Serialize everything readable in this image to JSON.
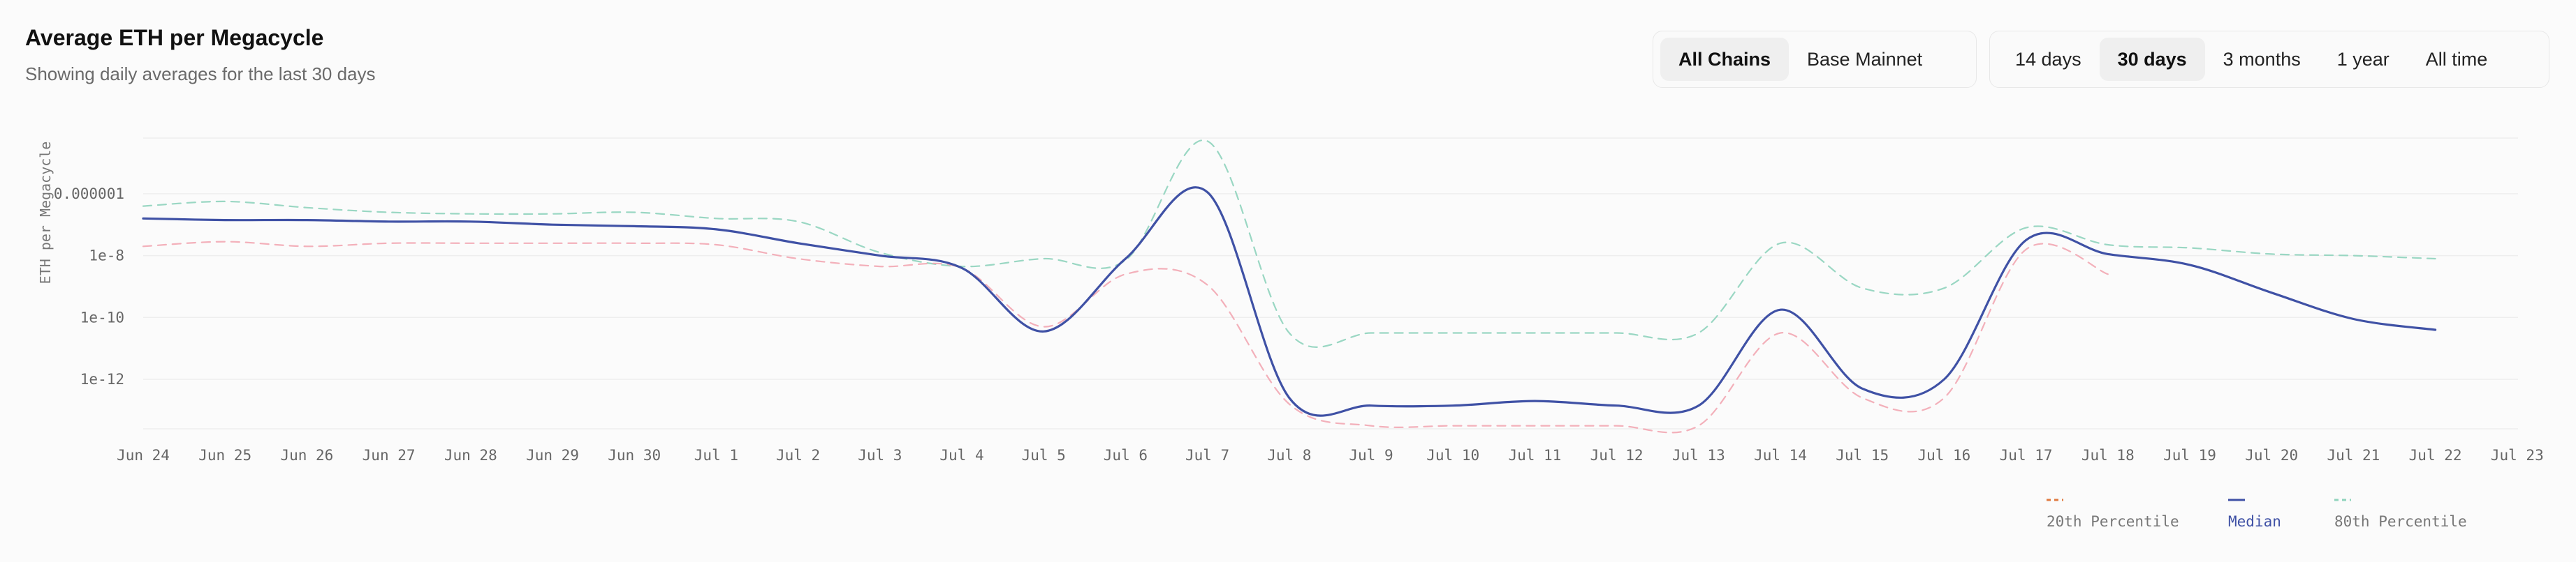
{
  "header": {
    "title": "Average ETH per Megacycle",
    "subtitle": "Showing daily averages for the last 30 days"
  },
  "chain_filter": {
    "options": [
      "All Chains",
      "Base Mainnet"
    ],
    "selected": "All Chains"
  },
  "range_filter": {
    "options": [
      "14 days",
      "30 days",
      "3 months",
      "1 year",
      "All time"
    ],
    "selected": "30 days"
  },
  "colors": {
    "p20": "#f2a7b3",
    "median": "#3f51a5",
    "p80": "#8fd3bc",
    "p20_legend": "#e07a3f"
  },
  "chart_data": {
    "type": "line",
    "ylabel": "ETH per Megacycle",
    "y_scale": "log",
    "ylim_log10": [
      -13.6,
      -4.2
    ],
    "yticks": [
      {
        "label": "0.000001",
        "log10": -6
      },
      {
        "label": "1e-8",
        "log10": -8
      },
      {
        "label": "1e-10",
        "log10": -10
      },
      {
        "label": "1e-12",
        "log10": -12
      }
    ],
    "categories": [
      "Jun 24",
      "Jun 25",
      "Jun 26",
      "Jun 27",
      "Jun 28",
      "Jun 29",
      "Jun 30",
      "Jul 1",
      "Jul 2",
      "Jul 3",
      "Jul 4",
      "Jul 5",
      "Jul 6",
      "Jul 7",
      "Jul 8",
      "Jul 9",
      "Jul 10",
      "Jul 11",
      "Jul 12",
      "Jul 13",
      "Jul 14",
      "Jul 15",
      "Jul 16",
      "Jul 17",
      "Jul 18",
      "Jul 19",
      "Jul 20",
      "Jul 21",
      "Jul 22",
      "Jul 23"
    ],
    "legend_position": "bottom-right",
    "series": [
      {
        "key": "p20",
        "name": "20th Percentile",
        "style": "dashed",
        "values_log10": [
          -7.7,
          -7.55,
          -7.7,
          -7.6,
          -7.6,
          -7.6,
          -7.6,
          -7.65,
          -8.1,
          -8.35,
          -8.4,
          -10.3,
          -8.6,
          -8.95,
          -12.8,
          -13.5,
          -13.5,
          -13.5,
          -13.5,
          -13.5,
          -10.5,
          -12.6,
          -12.6,
          -7.8,
          -8.6,
          null,
          null,
          null,
          null,
          null
        ]
      },
      {
        "key": "median",
        "name": "Median",
        "style": "solid",
        "values_log10": [
          -6.8,
          -6.85,
          -6.85,
          -6.9,
          -6.9,
          -7.0,
          -7.05,
          -7.15,
          -7.6,
          -8.0,
          -8.4,
          -10.45,
          -8.1,
          -5.95,
          -12.6,
          -12.85,
          -12.85,
          -12.7,
          -12.85,
          -12.85,
          -9.75,
          -12.3,
          -12.0,
          -7.5,
          -7.95,
          -8.3,
          -9.2,
          -10.05,
          -10.4,
          null
        ]
      },
      {
        "key": "p80",
        "name": "80th Percentile",
        "style": "dashed",
        "values_log10": [
          -6.4,
          -6.25,
          -6.45,
          -6.6,
          -6.65,
          -6.65,
          -6.6,
          -6.8,
          -6.9,
          -7.9,
          -8.35,
          -8.1,
          -8.15,
          -4.3,
          -10.5,
          -10.5,
          -10.5,
          -10.5,
          -10.5,
          -10.5,
          -7.6,
          -9.05,
          -9.05,
          -7.1,
          -7.65,
          -7.75,
          -7.95,
          -8.0,
          -8.1,
          null
        ]
      }
    ]
  }
}
